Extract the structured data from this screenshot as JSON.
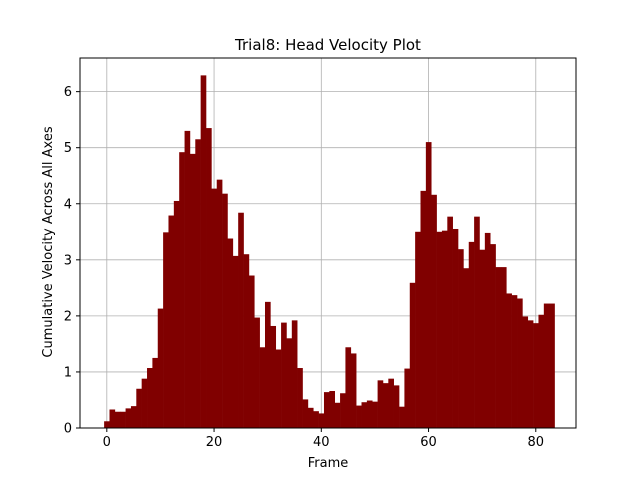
{
  "chart_data": {
    "type": "bar",
    "title": "Trial8: Head Velocity Plot",
    "xlabel": "Frame",
    "ylabel": "Cumulative Velocity Across All Axes",
    "x": [
      0,
      1,
      2,
      3,
      4,
      5,
      6,
      7,
      8,
      9,
      10,
      11,
      12,
      13,
      14,
      15,
      16,
      17,
      18,
      19,
      20,
      21,
      22,
      23,
      24,
      25,
      26,
      27,
      28,
      29,
      30,
      31,
      32,
      33,
      34,
      35,
      36,
      37,
      38,
      39,
      40,
      41,
      42,
      43,
      44,
      45,
      46,
      47,
      48,
      49,
      50,
      51,
      52,
      53,
      54,
      55,
      56,
      57,
      58,
      59,
      60,
      61,
      62,
      63,
      64,
      65,
      66,
      67,
      68,
      69,
      70,
      71,
      72,
      73,
      74,
      75,
      76,
      77,
      78,
      79,
      80,
      81,
      82,
      83
    ],
    "values": [
      0.12,
      0.33,
      0.29,
      0.29,
      0.35,
      0.39,
      0.7,
      0.88,
      1.07,
      1.25,
      2.13,
      3.49,
      3.79,
      4.05,
      4.92,
      5.3,
      4.89,
      5.15,
      6.29,
      5.35,
      4.27,
      4.43,
      4.18,
      3.38,
      3.07,
      3.84,
      3.1,
      2.72,
      1.97,
      1.44,
      2.25,
      1.82,
      1.4,
      1.88,
      1.6,
      1.92,
      1.07,
      0.51,
      0.36,
      0.3,
      0.26,
      0.64,
      0.66,
      0.45,
      0.62,
      1.44,
      1.33,
      0.4,
      0.46,
      0.49,
      0.47,
      0.85,
      0.8,
      0.88,
      0.76,
      0.38,
      1.06,
      2.59,
      3.5,
      4.23,
      5.1,
      4.16,
      3.5,
      3.52,
      3.77,
      3.55,
      3.19,
      2.85,
      3.32,
      3.77,
      3.18,
      3.48,
      3.28,
      2.87,
      2.87,
      2.4,
      2.37,
      2.31,
      1.99,
      1.92,
      1.87,
      2.02,
      2.22,
      2.22
    ],
    "xlim": [
      -5,
      87.5
    ],
    "ylim": [
      0,
      6.6
    ],
    "xticks": [
      0,
      20,
      40,
      60,
      80
    ],
    "yticks": [
      0,
      1,
      2,
      3,
      4,
      5,
      6
    ],
    "grid": true,
    "bar_color": "#800000",
    "grid_color": "#b0b0b0"
  }
}
